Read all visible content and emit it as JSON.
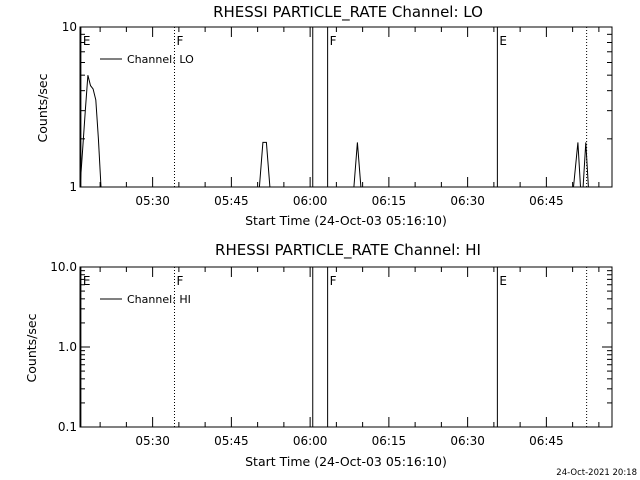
{
  "chart_data": [
    {
      "type": "line",
      "title": "RHESSI PARTICLE_RATE Channel: LO",
      "xlabel": "Start Time (24-Oct-03 05:16:10)",
      "ylabel": "Counts/sec",
      "yscale": "log",
      "ylim": [
        1,
        10
      ],
      "ytick_labels": [
        "1",
        "10"
      ],
      "xlim": [
        "05:16:10",
        "06:57:30"
      ],
      "xtick_labels": [
        "05:30",
        "05:45",
        "06:00",
        "06:15",
        "06:30",
        "06:45"
      ],
      "legend": {
        "position": "top-left",
        "entries": [
          "Channel: LO"
        ]
      },
      "series": [
        {
          "name": "Channel: LO",
          "points": [
            [
              "05:16:10",
              1.0
            ],
            [
              "05:16:40",
              1.7
            ],
            [
              "05:17:10",
              3.0
            ],
            [
              "05:17:40",
              5.0
            ],
            [
              "05:18:10",
              4.3
            ],
            [
              "05:18:40",
              4.1
            ],
            [
              "05:19:10",
              3.5
            ],
            [
              "05:19:40",
              2.0
            ],
            [
              "05:20:10",
              1.0
            ],
            [
              "05:50:20",
              1.0
            ],
            [
              "05:51:00",
              1.9
            ],
            [
              "05:51:40",
              1.9
            ],
            [
              "05:52:20",
              1.0
            ],
            [
              "06:08:20",
              1.0
            ],
            [
              "06:09:00",
              1.9
            ],
            [
              "06:09:40",
              1.0
            ],
            [
              "06:50:10",
              1.0
            ],
            [
              "06:51:00",
              1.9
            ],
            [
              "06:51:30",
              1.0
            ],
            [
              "06:52:00",
              1.0
            ],
            [
              "06:52:30",
              1.9
            ],
            [
              "06:53:00",
              1.0
            ]
          ]
        }
      ],
      "vertical_lines": [
        {
          "time": "05:16:20",
          "style": "solid",
          "label": "E"
        },
        {
          "time": "05:34:10",
          "style": "dotted",
          "label": "F"
        },
        {
          "time": "06:00:30",
          "style": "solid",
          "label": ""
        },
        {
          "time": "06:03:20",
          "style": "solid",
          "label": "F"
        },
        {
          "time": "06:35:40",
          "style": "solid",
          "label": "E"
        },
        {
          "time": "06:52:40",
          "style": "dotted",
          "label": ""
        }
      ]
    },
    {
      "type": "line",
      "title": "RHESSI PARTICLE_RATE Channel: HI",
      "xlabel": "Start Time (24-Oct-03 05:16:10)",
      "ylabel": "Counts/sec",
      "yscale": "log",
      "ylim": [
        0.1,
        10
      ],
      "ytick_labels": [
        "0.1",
        "1.0",
        "10.0"
      ],
      "xlim": [
        "05:16:10",
        "06:57:30"
      ],
      "xtick_labels": [
        "05:30",
        "05:45",
        "06:00",
        "06:15",
        "06:30",
        "06:45"
      ],
      "legend": {
        "position": "top-left",
        "entries": [
          "Channel: HI"
        ]
      },
      "series": [
        {
          "name": "Channel: HI",
          "points": []
        }
      ],
      "vertical_lines": [
        {
          "time": "05:16:20",
          "style": "solid",
          "label": "E"
        },
        {
          "time": "05:34:10",
          "style": "dotted",
          "label": "F"
        },
        {
          "time": "06:00:30",
          "style": "solid",
          "label": ""
        },
        {
          "time": "06:03:20",
          "style": "solid",
          "label": "F"
        },
        {
          "time": "06:35:40",
          "style": "solid",
          "label": "E"
        },
        {
          "time": "06:52:40",
          "style": "dotted",
          "label": ""
        }
      ]
    }
  ],
  "footer": {
    "timestamp": "24-Oct-2021 20:18"
  }
}
